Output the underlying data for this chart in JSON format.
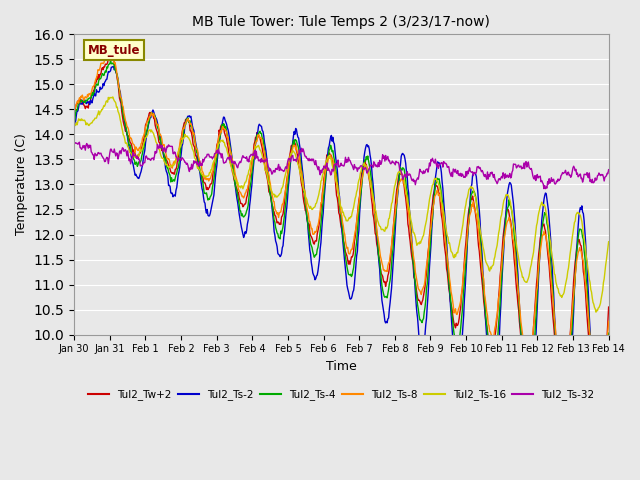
{
  "title": "MB Tule Tower: Tule Temps 2 (3/23/17-now)",
  "xlabel": "Time",
  "ylabel": "Temperature (C)",
  "ylim": [
    10.0,
    16.0
  ],
  "yticks": [
    10.0,
    10.5,
    11.0,
    11.5,
    12.0,
    12.5,
    13.0,
    13.5,
    14.0,
    14.5,
    15.0,
    15.5,
    16.0
  ],
  "bg_color": "#e8e8e8",
  "series_colors": {
    "Tul2_Tw+2": "#cc0000",
    "Tul2_Ts-2": "#0000cc",
    "Tul2_Ts-4": "#00aa00",
    "Tul2_Ts-8": "#ff8800",
    "Tul2_Ts-16": "#cccc00",
    "Tul2_Ts-32": "#aa00aa"
  },
  "legend_box_color": "#ffffcc",
  "legend_box_edge": "#888800",
  "legend_box_text": "#880000",
  "legend_box_label": "MB_tule",
  "tick_labels": [
    "Jan 30",
    "Jan 31",
    "Feb 1",
    "Feb 2",
    "Feb 3",
    "Feb 4",
    "Feb 5",
    "Feb 6",
    "Feb 7",
    "Feb 8",
    "Feb 9",
    "Feb 10",
    "Feb 11",
    "Feb 12",
    "Feb 13",
    "Feb 14"
  ]
}
